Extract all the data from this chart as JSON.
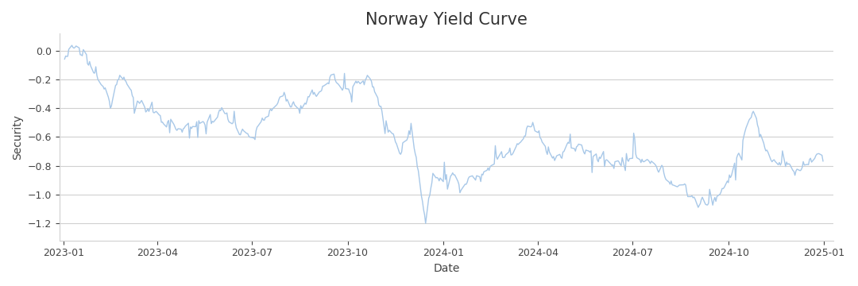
{
  "title": "Norway Yield Curve",
  "xlabel": "Date",
  "ylabel": "Security",
  "line_color": "#a8c8e8",
  "background_color": "#ffffff",
  "grid_color": "#d0d0d0",
  "ylim": [
    -1.32,
    0.12
  ],
  "yticks": [
    0.0,
    -0.2,
    -0.4,
    -0.6,
    -0.8,
    -1.0,
    -1.2
  ],
  "title_fontsize": 15,
  "axis_fontsize": 10,
  "tick_fontsize": 9,
  "linewidth": 1.0
}
